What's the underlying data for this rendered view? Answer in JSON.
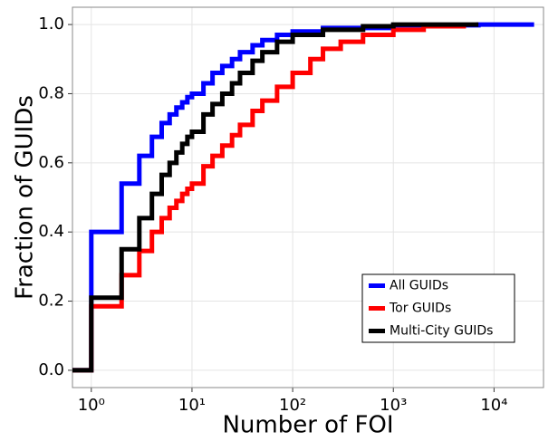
{
  "chart_data": {
    "type": "step",
    "x_label": "Number of FOI",
    "y_label": "Fraction of GUIDs",
    "xscale": "log",
    "grid": true,
    "legend": "bottom-right",
    "xlim": [
      0.65,
      31000
    ],
    "ylim": [
      -0.05,
      1.05
    ],
    "xticks": [
      {
        "value": 1,
        "label": "10⁰"
      },
      {
        "value": 10,
        "label": "10¹"
      },
      {
        "value": 100,
        "label": "10²"
      },
      {
        "value": 1000,
        "label": "10³"
      },
      {
        "value": 10000,
        "label": "10⁴"
      }
    ],
    "yticks": [
      {
        "value": 0,
        "label": "0.0"
      },
      {
        "value": 0.2,
        "label": "0.2"
      },
      {
        "value": 0.4,
        "label": "0.4"
      },
      {
        "value": 0.6,
        "label": "0.6"
      },
      {
        "value": 0.8,
        "label": "0.8"
      },
      {
        "value": 1,
        "label": "1.0"
      }
    ],
    "series": [
      {
        "name": "All GUIDs",
        "color": "#0000ff",
        "x": [
          0.65,
          1,
          2,
          3,
          4,
          5,
          6,
          7,
          8,
          9,
          10,
          13,
          16,
          20,
          25,
          30,
          40,
          50,
          70,
          100,
          200,
          1000,
          7000,
          25000
        ],
        "values": [
          0,
          0.4,
          0.54,
          0.62,
          0.675,
          0.715,
          0.74,
          0.76,
          0.775,
          0.79,
          0.8,
          0.83,
          0.86,
          0.88,
          0.9,
          0.92,
          0.94,
          0.955,
          0.97,
          0.98,
          0.99,
          0.998,
          1,
          1
        ]
      },
      {
        "name": "Tor GUIDs",
        "color": "#ff0000",
        "x": [
          0.65,
          1,
          2,
          3,
          4,
          5,
          6,
          7,
          8,
          9,
          10,
          13,
          16,
          20,
          25,
          30,
          40,
          50,
          70,
          100,
          150,
          200,
          300,
          500,
          1000,
          2000,
          5000
        ],
        "values": [
          0,
          0.185,
          0.275,
          0.345,
          0.4,
          0.44,
          0.47,
          0.49,
          0.51,
          0.525,
          0.54,
          0.59,
          0.62,
          0.65,
          0.68,
          0.71,
          0.75,
          0.78,
          0.82,
          0.86,
          0.9,
          0.93,
          0.95,
          0.97,
          0.985,
          0.995,
          1
        ]
      },
      {
        "name": "Multi-City GUIDs",
        "color": "#000000",
        "x": [
          0.65,
          1,
          2,
          3,
          4,
          5,
          6,
          7,
          8,
          9,
          10,
          13,
          16,
          20,
          25,
          30,
          40,
          50,
          70,
          100,
          200,
          500,
          1000,
          7000
        ],
        "values": [
          0,
          0.21,
          0.35,
          0.44,
          0.51,
          0.565,
          0.6,
          0.63,
          0.655,
          0.675,
          0.69,
          0.74,
          0.77,
          0.8,
          0.83,
          0.86,
          0.895,
          0.92,
          0.95,
          0.97,
          0.985,
          0.995,
          1,
          1
        ]
      }
    ]
  }
}
